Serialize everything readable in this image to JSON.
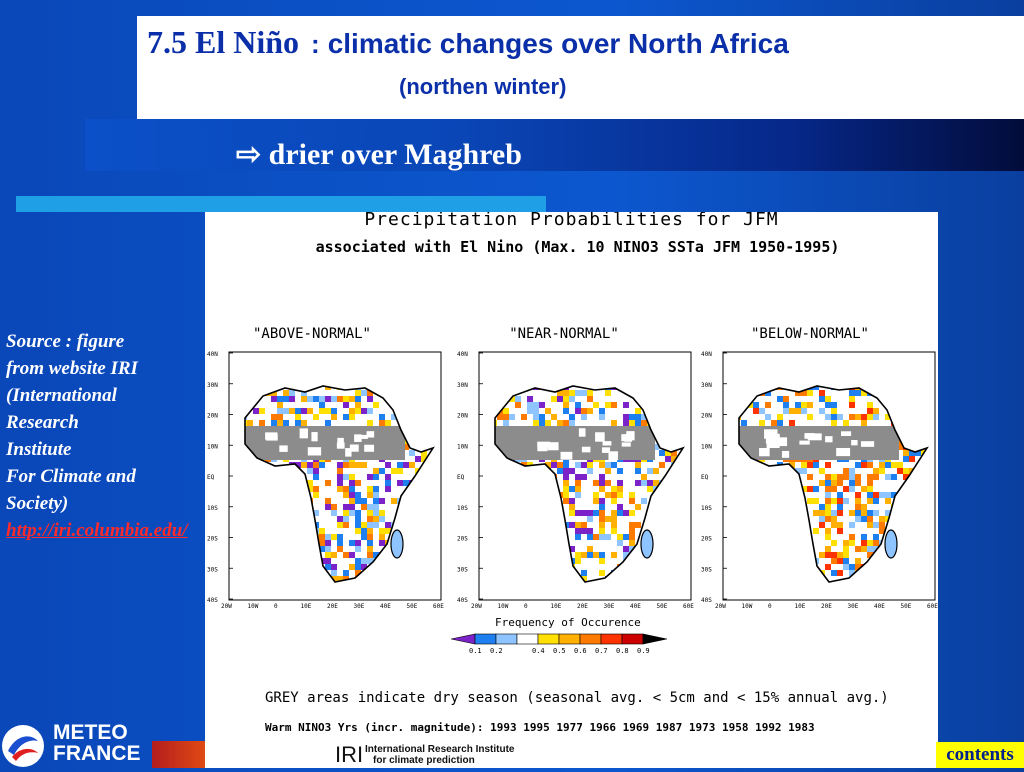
{
  "title": {
    "number": "7.5 El Niño",
    "separator": ":",
    "main": "climatic changes over North Africa",
    "season": "(northen winter)"
  },
  "subtitle": {
    "arrow": "⇨",
    "text": "drier over Maghreb"
  },
  "source": {
    "lines": [
      "Source : figure",
      "from website IRI",
      "(International",
      "Research",
      "Institute",
      "For Climate and",
      "Society)"
    ],
    "link": "http://iri.columbia.edu/"
  },
  "figure": {
    "title": "Precipitation Probabilities for JFM",
    "subtitle": "associated with El Nino (Max. 10 NINO3 SSTa JFM 1950-1995)",
    "maps": [
      {
        "label": "\"ABOVE-NORMAL\""
      },
      {
        "label": "\"NEAR-NORMAL\""
      },
      {
        "label": "\"BELOW-NORMAL\""
      }
    ],
    "lat_ticks": [
      "40N",
      "30N",
      "20N",
      "10N",
      "EQ",
      "10S",
      "20S",
      "30S",
      "40S"
    ],
    "lon_ticks": [
      "20W",
      "10W",
      "0",
      "10E",
      "20E",
      "30E",
      "40E",
      "50E",
      "60E"
    ],
    "legend": {
      "title": "Frequency of Occurence",
      "ticks": [
        "0.1",
        "0.2",
        "0.4",
        "0.5",
        "0.6",
        "0.7",
        "0.8",
        "0.9"
      ],
      "colors": [
        "#7b22c8",
        "#1e7ff0",
        "#8ec4ff",
        "#ffffff",
        "#ffe000",
        "#ffb000",
        "#ff7a00",
        "#ff3300",
        "#cc0000",
        "#000000"
      ]
    },
    "note_grey": "GREY areas indicate dry season (seasonal avg. < 5cm and < 15% annual avg.)",
    "note_years": "Warm NINO3 Yrs (incr. magnitude): 1993 1995 1977 1966 1969 1987 1973 1958 1992 1983",
    "iri_logo": "IRI",
    "iri_name_line1": "International Research Institute",
    "iri_name_line2": "for climate prediction"
  },
  "footer": {
    "logo_line1": "METEO",
    "logo_line2": "FRANCE",
    "contents_label": "contents"
  }
}
